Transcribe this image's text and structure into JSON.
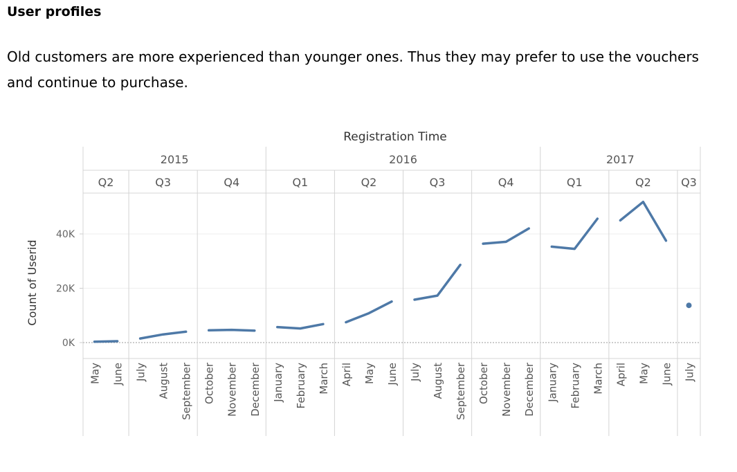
{
  "heading": "User profiles",
  "paragraph": "Old customers are more experienced than younger ones. Thus they may prefer to use the vouchers and continue to purchase.",
  "chart_data": {
    "type": "line",
    "title": "Registration Time",
    "ylabel": "Count of Userid",
    "ylim": [
      0,
      52000
    ],
    "yticks": [
      {
        "value": 0,
        "label": "0K"
      },
      {
        "value": 20000,
        "label": "20K"
      },
      {
        "value": 40000,
        "label": "40K"
      }
    ],
    "years": [
      {
        "label": "2015",
        "quarters": [
          "Q2",
          "Q3",
          "Q4"
        ]
      },
      {
        "label": "2016",
        "quarters": [
          "Q1",
          "Q2",
          "Q3",
          "Q4"
        ]
      },
      {
        "label": "2017",
        "quarters": [
          "Q1",
          "Q2",
          "Q3"
        ]
      }
    ],
    "panels": [
      {
        "year": "2015",
        "quarter": "Q2",
        "months": [
          "May",
          "June"
        ],
        "values": [
          300,
          500
        ]
      },
      {
        "year": "2015",
        "quarter": "Q3",
        "months": [
          "July",
          "August",
          "September"
        ],
        "values": [
          1500,
          3000,
          4000
        ]
      },
      {
        "year": "2015",
        "quarter": "Q4",
        "months": [
          "October",
          "November",
          "December"
        ],
        "values": [
          4500,
          4700,
          4400
        ]
      },
      {
        "year": "2016",
        "quarter": "Q1",
        "months": [
          "January",
          "February",
          "March"
        ],
        "values": [
          5700,
          5200,
          6800
        ]
      },
      {
        "year": "2016",
        "quarter": "Q2",
        "months": [
          "April",
          "May",
          "June"
        ],
        "values": [
          7500,
          10800,
          15100
        ]
      },
      {
        "year": "2016",
        "quarter": "Q3",
        "months": [
          "July",
          "August",
          "September"
        ],
        "values": [
          15800,
          17300,
          28600
        ]
      },
      {
        "year": "2016",
        "quarter": "Q4",
        "months": [
          "October",
          "November",
          "December"
        ],
        "values": [
          36400,
          37100,
          42000
        ]
      },
      {
        "year": "2017",
        "quarter": "Q1",
        "months": [
          "January",
          "February",
          "March"
        ],
        "values": [
          35300,
          34500,
          45600
        ]
      },
      {
        "year": "2017",
        "quarter": "Q2",
        "months": [
          "April",
          "May",
          "June"
        ],
        "values": [
          45000,
          51800,
          37500
        ]
      },
      {
        "year": "2017",
        "quarter": "Q3",
        "months": [
          "July"
        ],
        "values": [
          13700
        ]
      }
    ],
    "line_color": "#4e79a7",
    "grid": true
  }
}
